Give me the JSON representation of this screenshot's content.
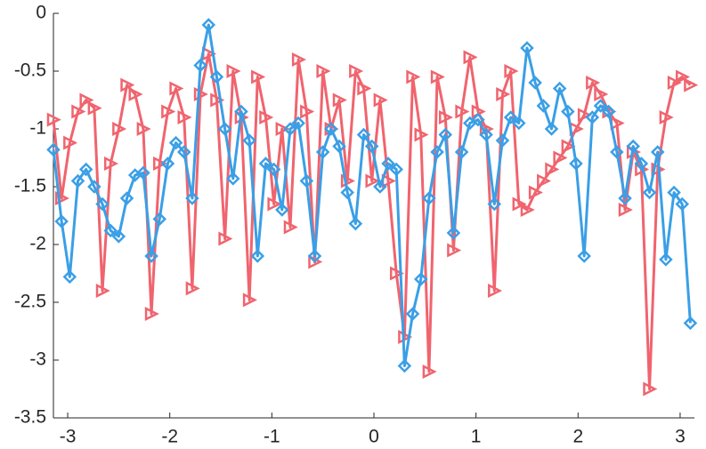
{
  "chart_data": {
    "type": "line",
    "x": [
      -3.14,
      -3.06,
      -2.98,
      -2.9,
      -2.82,
      -2.74,
      -2.66,
      -2.58,
      -2.5,
      -2.42,
      -2.34,
      -2.26,
      -2.18,
      -2.1,
      -2.02,
      -1.94,
      -1.86,
      -1.78,
      -1.7,
      -1.62,
      -1.54,
      -1.46,
      -1.38,
      -1.3,
      -1.22,
      -1.14,
      -1.06,
      -0.98,
      -0.9,
      -0.82,
      -0.74,
      -0.66,
      -0.58,
      -0.5,
      -0.42,
      -0.34,
      -0.26,
      -0.18,
      -0.1,
      -0.02,
      0.06,
      0.14,
      0.22,
      0.3,
      0.38,
      0.46,
      0.54,
      0.62,
      0.7,
      0.78,
      0.86,
      0.94,
      1.02,
      1.1,
      1.18,
      1.26,
      1.34,
      1.42,
      1.5,
      1.58,
      1.66,
      1.74,
      1.82,
      1.9,
      1.98,
      2.06,
      2.14,
      2.22,
      2.3,
      2.38,
      2.46,
      2.54,
      2.62,
      2.7,
      2.78,
      2.86,
      2.94,
      3.02,
      3.1
    ],
    "series": [
      {
        "color": "#f0646e",
        "marker": "triangle-right",
        "values": [
          -0.92,
          -1.6,
          -1.12,
          -0.85,
          -0.75,
          -0.82,
          -2.4,
          -1.3,
          -1.0,
          -0.62,
          -0.7,
          -1.0,
          -2.6,
          -1.3,
          -0.85,
          -0.65,
          -0.9,
          -2.38,
          -0.7,
          -0.35,
          -0.75,
          -1.95,
          -0.5,
          -0.9,
          -2.48,
          -0.55,
          -0.9,
          -1.65,
          -1.0,
          -1.85,
          -0.4,
          -0.85,
          -2.15,
          -0.5,
          -1.0,
          -0.75,
          -1.45,
          -0.5,
          -0.65,
          -1.45,
          -0.75,
          -1.45,
          -2.25,
          -2.8,
          -0.55,
          -1.05,
          -3.1,
          -0.55,
          -0.9,
          -2.05,
          -0.85,
          -0.38,
          -0.85,
          -1.0,
          -2.4,
          -0.7,
          -0.5,
          -1.65,
          -1.7,
          -1.55,
          -1.45,
          -1.35,
          -1.25,
          -1.15,
          -1.0,
          -0.88,
          -0.6,
          -0.7,
          -0.85,
          -0.95,
          -1.7,
          -1.2,
          -1.35,
          -3.25,
          -1.35,
          -0.9,
          -0.6,
          -0.55,
          -0.62
        ]
      },
      {
        "color": "#3a9fe6",
        "marker": "diamond",
        "values": [
          -1.18,
          -1.8,
          -2.28,
          -1.45,
          -1.35,
          -1.5,
          -1.65,
          -1.88,
          -1.93,
          -1.6,
          -1.4,
          -1.38,
          -2.1,
          -1.78,
          -1.3,
          -1.12,
          -1.2,
          -1.6,
          -0.45,
          -0.1,
          -0.55,
          -1.0,
          -1.43,
          -0.85,
          -1.1,
          -2.1,
          -1.3,
          -1.35,
          -1.7,
          -1.0,
          -0.95,
          -1.45,
          -2.1,
          -1.2,
          -1.0,
          -1.15,
          -1.55,
          -1.82,
          -1.05,
          -1.15,
          -1.5,
          -1.3,
          -1.35,
          -3.05,
          -2.6,
          -2.3,
          -1.6,
          -1.2,
          -1.05,
          -1.9,
          -1.2,
          -0.95,
          -0.92,
          -1.05,
          -1.65,
          -1.1,
          -0.9,
          -0.95,
          -0.3,
          -0.6,
          -0.8,
          -1.0,
          -0.65,
          -0.85,
          -1.3,
          -2.1,
          -0.9,
          -0.8,
          -0.85,
          -1.2,
          -1.6,
          -1.15,
          -1.3,
          -1.55,
          -1.2,
          -2.13,
          -1.55,
          -1.65,
          -2.68
        ]
      }
    ],
    "xlim": [
      -3.14,
      3.14
    ],
    "ylim": [
      -3.5,
      0
    ],
    "xticks": [
      -3,
      -2,
      -1,
      0,
      1,
      2,
      3
    ],
    "yticks": [
      0,
      -0.5,
      -1,
      -1.5,
      -2,
      -2.5,
      -3,
      -3.5
    ]
  }
}
